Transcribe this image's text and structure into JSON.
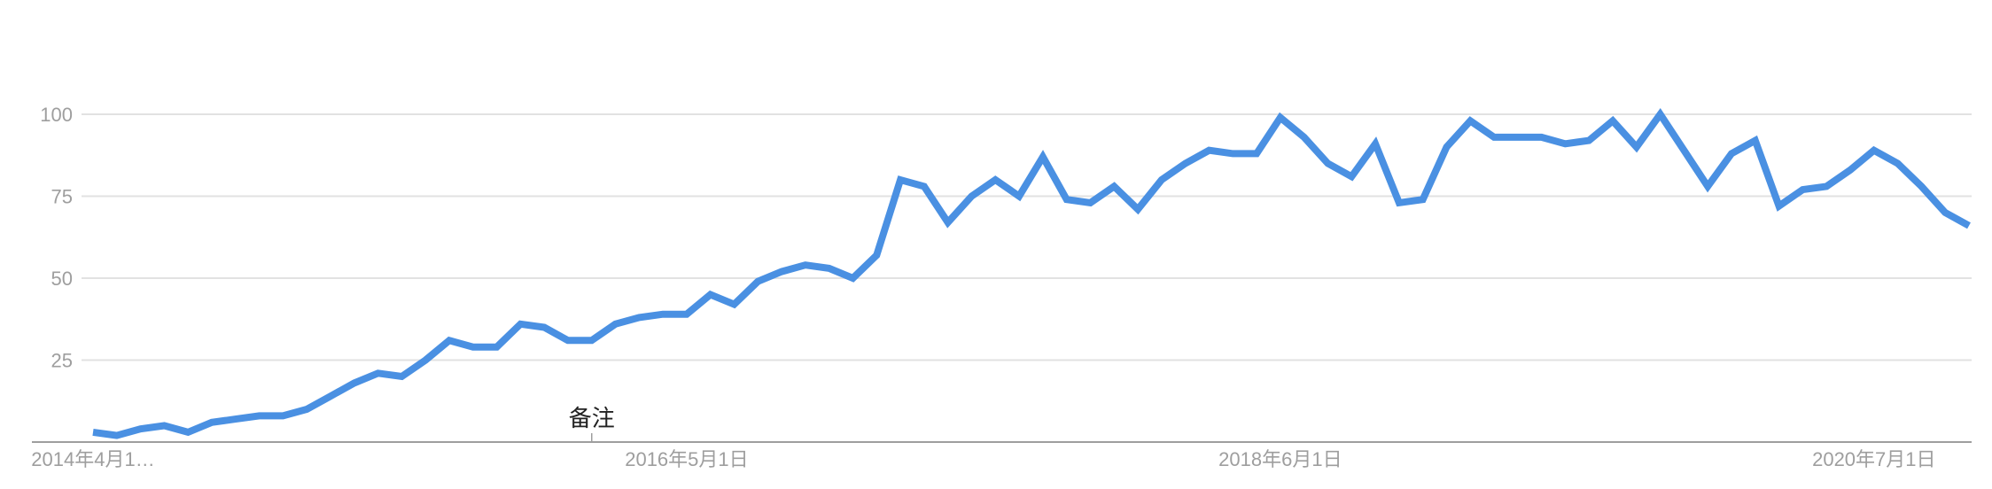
{
  "chart_data": {
    "type": "line",
    "title": "",
    "xlabel": "",
    "ylabel": "",
    "ylim": [
      0,
      100
    ],
    "y_ticks": [
      25,
      50,
      75,
      100
    ],
    "x_tick_labels": [
      "2014年4月1…",
      "2016年5月1日",
      "2018年6月1日",
      "2020年7月1日"
    ],
    "x_tick_index": [
      0,
      25,
      50,
      75
    ],
    "grid": true,
    "legend": "none",
    "annotations": [
      {
        "label": "备注",
        "index": 21
      }
    ],
    "series": [
      {
        "color": "#4a90e2",
        "values": [
          3,
          2,
          4,
          5,
          3,
          6,
          7,
          8,
          8,
          10,
          14,
          18,
          21,
          20,
          25,
          31,
          29,
          29,
          36,
          35,
          31,
          31,
          36,
          38,
          39,
          39,
          45,
          42,
          49,
          52,
          54,
          53,
          50,
          57,
          80,
          78,
          67,
          75,
          80,
          75,
          87,
          74,
          73,
          78,
          71,
          80,
          85,
          89,
          88,
          88,
          99,
          93,
          85,
          81,
          91,
          73,
          74,
          90,
          98,
          93,
          93,
          93,
          91,
          92,
          98,
          90,
          100,
          89,
          78,
          88,
          92,
          72,
          77,
          78,
          83,
          89,
          85,
          78,
          70,
          66
        ]
      }
    ]
  }
}
